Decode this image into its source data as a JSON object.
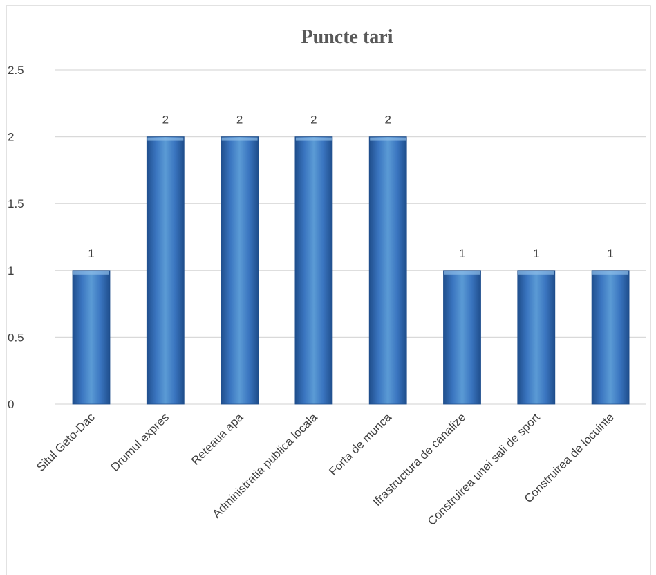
{
  "chart_data": {
    "type": "bar",
    "title": "Puncte tari",
    "categories": [
      "Situl Geto-Dac",
      "Drumul expres",
      "Reteaua apa",
      "Administratia publica locala",
      "Forta de munca",
      "Ifrastructura de canalize",
      "Construirea unei sali de sport",
      "Construirea de locuinte"
    ],
    "values": [
      1,
      2,
      2,
      2,
      2,
      1,
      1,
      1
    ],
    "data_labels": [
      "1",
      "2",
      "2",
      "2",
      "2",
      "1",
      "1",
      "1"
    ],
    "ylim": [
      0,
      2.5
    ],
    "yticks": [
      0,
      0.5,
      1,
      1.5,
      2,
      2.5
    ],
    "ytick_labels": [
      "0",
      "0.5",
      "1",
      "1.5",
      "2",
      "2.5"
    ],
    "xlabel": "",
    "ylabel": "",
    "grid": true,
    "legend": "none",
    "colors": {
      "bar_light": "#5b9bd5",
      "bar_mid": "#3a75c0",
      "bar_dark": "#1f4e8c",
      "grid": "#d9d9d9",
      "border": "#d9d9d9"
    }
  }
}
